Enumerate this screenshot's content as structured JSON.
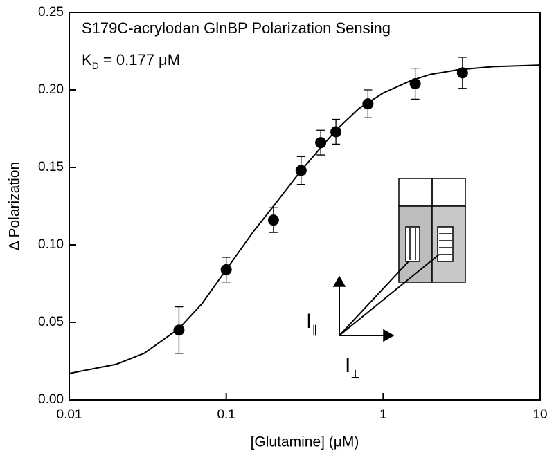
{
  "chart_data": {
    "type": "scatter",
    "title": "S179C-acrylodan GlnBP Polarization Sensing",
    "kd_label": {
      "text": "K",
      "subscript": "D",
      "rest": " = 0.177 μM"
    },
    "inset_labels": [
      {
        "text": "I",
        "subscript": "∥"
      },
      {
        "text": "I",
        "subscript": "⊥"
      }
    ],
    "x_label": "[Glutamine] (μM)",
    "y_label": "Δ Polarization",
    "log_x": true,
    "xlim": [
      0.01,
      10
    ],
    "xticks": [
      0.01,
      0.1,
      1,
      10
    ],
    "ylim": [
      0,
      0.25
    ],
    "yticks": [
      {
        "value": 0,
        "label": "0.00"
      },
      0.05,
      {
        "value": 0.1,
        "label": "0.10"
      },
      0.15,
      {
        "value": 0.2,
        "label": "0.20"
      },
      0.25
    ],
    "series": [
      {
        "color": "#000000",
        "marker": "circle",
        "x": [
          0.05,
          0.1,
          0.2,
          0.3,
          0.4,
          0.5,
          0.8,
          1.6,
          3.2
        ],
        "values": [
          0.045,
          0.084,
          0.116,
          0.148,
          0.166,
          0.173,
          0.191,
          0.204,
          0.211
        ],
        "errors": [
          0.015,
          0.008,
          0.008,
          0.009,
          0.008,
          0.008,
          0.009,
          0.01,
          0.01
        ]
      },
      {
        "color": "#000000",
        "marker": "line",
        "x": [
          0.01,
          0.02,
          0.03,
          0.05,
          0.07,
          0.1,
          0.15,
          0.2,
          0.3,
          0.5,
          0.7,
          1,
          1.5,
          2,
          3,
          5,
          10
        ],
        "values": [
          0.017,
          0.023,
          0.03,
          0.046,
          0.062,
          0.084,
          0.109,
          0.125,
          0.148,
          0.174,
          0.188,
          0.198,
          0.206,
          0.21,
          0.213,
          0.215,
          0.216
        ]
      }
    ]
  }
}
